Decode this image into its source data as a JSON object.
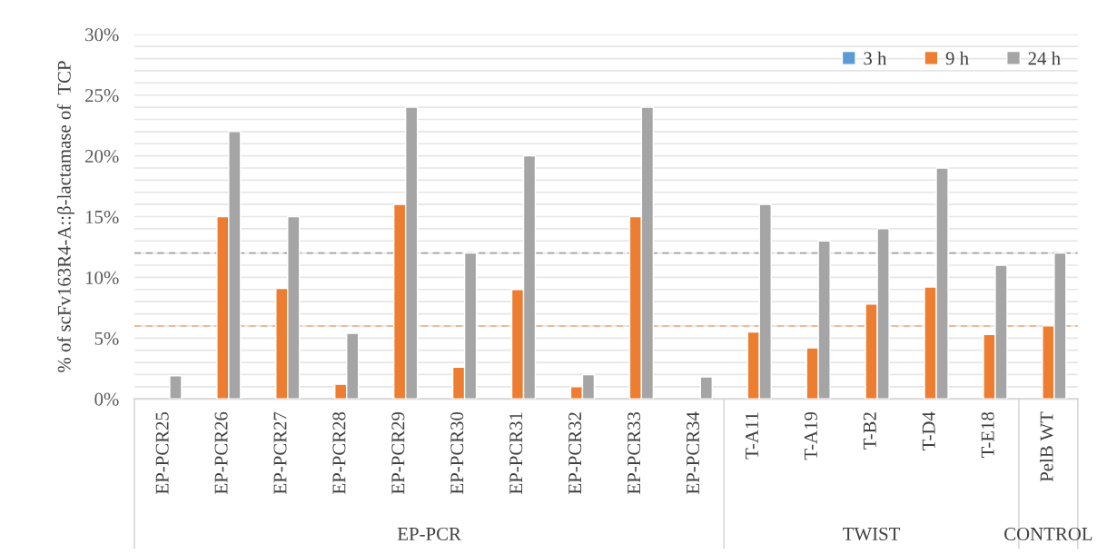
{
  "chart_data": {
    "type": "bar",
    "ylabel": "% of scFv163R4-A::β-lactamase of  TCP",
    "categories": [
      "EP-PCR25",
      "EP-PCR26",
      "EP-PCR27",
      "EP-PCR28",
      "EP-PCR29",
      "EP-PCR30",
      "EP-PCR31",
      "EP-PCR32",
      "EP-PCR33",
      "EP-PCR34",
      "T-A11",
      "T-A19",
      "T-B2",
      "T-D4",
      "T-E18",
      "PelB WT"
    ],
    "series": [
      {
        "name": "3 h",
        "color": "#5b9bd5",
        "values": [
          null,
          null,
          null,
          null,
          null,
          null,
          null,
          null,
          null,
          null,
          null,
          null,
          null,
          null,
          null,
          null
        ]
      },
      {
        "name": "9 h",
        "color": "#ed7d31",
        "values": [
          null,
          15,
          9.1,
          1.2,
          16,
          2.6,
          9,
          1,
          15,
          null,
          5.5,
          4.2,
          7.8,
          9.2,
          5.3,
          6
        ]
      },
      {
        "name": "24 h",
        "color": "#a5a5a5",
        "values": [
          1.9,
          22,
          15,
          5.4,
          24,
          12,
          20,
          2,
          24,
          1.8,
          16,
          13,
          14,
          19,
          11,
          12
        ]
      }
    ],
    "ylim": [
      0,
      30
    ],
    "yticks": [
      {
        "value": 0,
        "label": "0%"
      },
      {
        "value": 1,
        "label": null
      },
      {
        "value": 2,
        "label": null
      },
      {
        "value": 3,
        "label": null
      },
      {
        "value": 4,
        "label": null
      },
      {
        "value": 5,
        "label": "5%"
      },
      {
        "value": 6,
        "label": null
      },
      {
        "value": 7,
        "label": null
      },
      {
        "value": 8,
        "label": null
      },
      {
        "value": 9,
        "label": null
      },
      {
        "value": 10,
        "label": "10%"
      },
      {
        "value": 11,
        "label": null
      },
      {
        "value": 12,
        "label": null
      },
      {
        "value": 13,
        "label": null
      },
      {
        "value": 14,
        "label": null
      },
      {
        "value": 15,
        "label": "15%"
      },
      {
        "value": 16,
        "label": null
      },
      {
        "value": 17,
        "label": null
      },
      {
        "value": 18,
        "label": null
      },
      {
        "value": 19,
        "label": null
      },
      {
        "value": 20,
        "label": "20%"
      },
      {
        "value": 21,
        "label": null
      },
      {
        "value": 22,
        "label": null
      },
      {
        "value": 23,
        "label": null
      },
      {
        "value": 24,
        "label": null
      },
      {
        "value": 25,
        "label": "25%"
      },
      {
        "value": 26,
        "label": null
      },
      {
        "value": 27,
        "label": null
      },
      {
        "value": 28,
        "label": null
      },
      {
        "value": 29,
        "label": null
      },
      {
        "value": 30,
        "label": "30%"
      }
    ],
    "ref_lines": [
      {
        "axis": "y",
        "value": 12,
        "color": "#a5a5a5",
        "line_style": "dashed"
      },
      {
        "axis": "y",
        "value": 6,
        "color": "#f4b183",
        "line_style": "dashed"
      }
    ],
    "annotations": [
      "EP-PCR",
      "TWIST",
      "CONTROL"
    ],
    "grid": "y",
    "legend": "top right"
  }
}
